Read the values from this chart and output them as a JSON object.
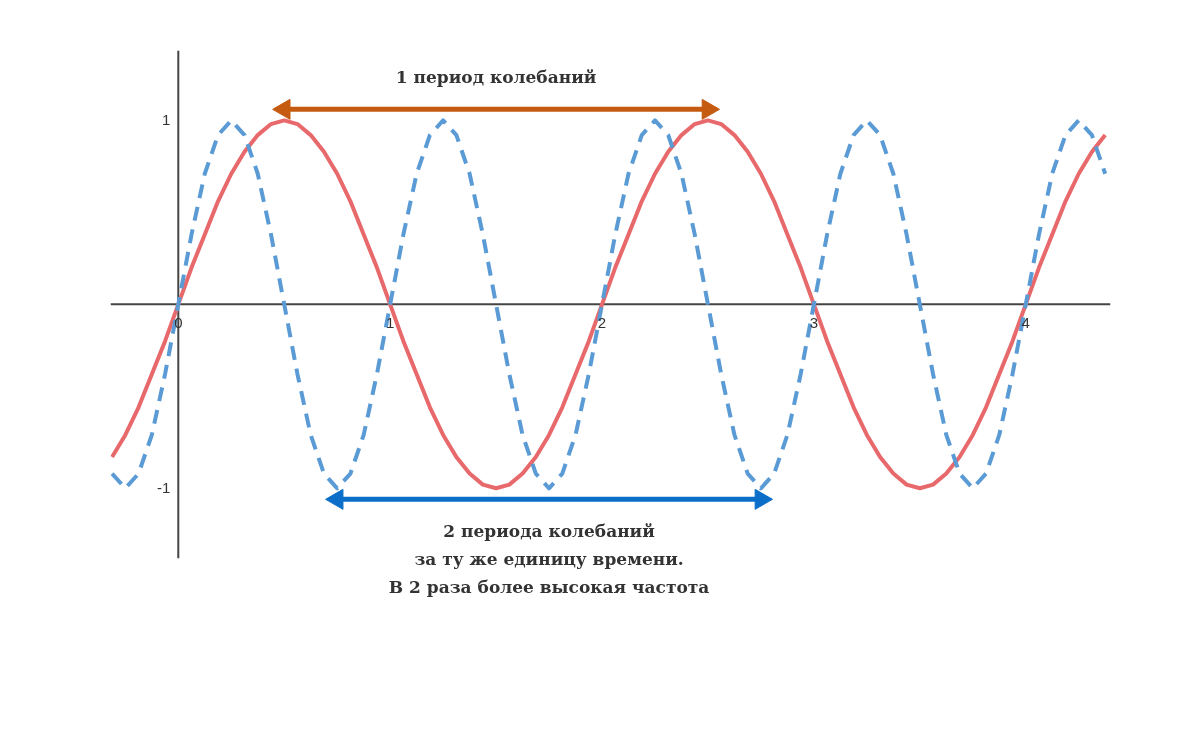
{
  "chart_data": {
    "type": "line",
    "x": [
      -0.3125,
      -0.25,
      -0.1875,
      -0.125,
      -0.0625,
      0,
      0.0625,
      0.125,
      0.1875,
      0.25,
      0.3125,
      0.375,
      0.4375,
      0.5,
      0.5625,
      0.625,
      0.6875,
      0.75,
      0.8125,
      0.875,
      0.9375,
      1,
      1.0625,
      1.125,
      1.1875,
      1.25,
      1.3125,
      1.375,
      1.4375,
      1.5,
      1.5625,
      1.625,
      1.6875,
      1.75,
      1.8125,
      1.875,
      1.9375,
      2,
      2.0625,
      2.125,
      2.1875,
      2.25,
      2.3125,
      2.375,
      2.4375,
      2.5,
      2.5625,
      2.625,
      2.6875,
      2.75,
      2.8125,
      2.875,
      2.9375,
      3,
      3.0625,
      3.125,
      3.1875,
      3.25,
      3.3125,
      3.375,
      3.4375,
      3.5,
      3.5625,
      3.625,
      3.6875,
      3.75,
      3.8125,
      3.875,
      3.9375,
      4,
      4.0625,
      4.125,
      4.1875,
      4.25,
      4.3125,
      4.375
    ],
    "series": [
      {
        "color": "#e8696b",
        "line_style": "solid",
        "values": [
          -0.83,
          -0.71,
          -0.56,
          -0.38,
          -0.2,
          0,
          0.2,
          0.38,
          0.56,
          0.71,
          0.83,
          0.92,
          0.98,
          1,
          0.98,
          0.92,
          0.83,
          0.71,
          0.56,
          0.38,
          0.2,
          0,
          -0.2,
          -0.38,
          -0.56,
          -0.71,
          -0.83,
          -0.92,
          -0.98,
          -1,
          -0.98,
          -0.92,
          -0.83,
          -0.71,
          -0.56,
          -0.38,
          -0.2,
          0,
          0.2,
          0.38,
          0.56,
          0.71,
          0.83,
          0.92,
          0.98,
          1,
          0.98,
          0.92,
          0.83,
          0.71,
          0.56,
          0.38,
          0.2,
          0,
          -0.2,
          -0.38,
          -0.56,
          -0.71,
          -0.83,
          -0.92,
          -0.98,
          -1,
          -0.98,
          -0.92,
          -0.83,
          -0.71,
          -0.56,
          -0.38,
          -0.2,
          0,
          0.2,
          0.38,
          0.56,
          0.71,
          0.83,
          0.92
        ]
      },
      {
        "type": "line",
        "color": "#c55a11",
        "line_style": "solid",
        "marker": "triangle",
        "x": [
          0.5,
          2.5
        ],
        "values": [
          1.06,
          1.06
        ]
      },
      {
        "type": "line",
        "color": "#0b6fc9",
        "line_style": "solid",
        "marker": "triangle",
        "x": [
          0.75,
          2.75
        ],
        "values": [
          -1.06,
          -1.06
        ]
      },
      {
        "color": "#5b9bd5",
        "line_style": "dashed",
        "values": [
          -0.92,
          -1,
          -0.92,
          -0.71,
          -0.38,
          0,
          0.38,
          0.71,
          0.92,
          1,
          0.92,
          0.71,
          0.38,
          0,
          -0.38,
          -0.71,
          -0.92,
          -1,
          -0.92,
          -0.71,
          -0.38,
          0,
          0.38,
          0.71,
          0.92,
          1,
          0.92,
          0.71,
          0.38,
          0,
          -0.38,
          -0.71,
          -0.92,
          -1,
          -0.92,
          -0.71,
          -0.38,
          0,
          0.38,
          0.71,
          0.92,
          1,
          0.92,
          0.71,
          0.38,
          0,
          -0.38,
          -0.71,
          -0.92,
          -1,
          -0.92,
          -0.71,
          -0.38,
          0,
          0.38,
          0.71,
          0.92,
          1,
          0.92,
          0.71,
          0.38,
          0,
          -0.38,
          -0.71,
          -0.92,
          -1,
          -0.92,
          -0.71,
          -0.38,
          0,
          0.38,
          0.71,
          0.92,
          1,
          0.92,
          0.71
        ]
      }
    ],
    "xlim": [
      -0.32,
      4.4
    ],
    "ylim": [
      -1.38,
      1.38
    ],
    "xticks": [
      0,
      1,
      2,
      3,
      4
    ],
    "yticks": [
      -1,
      1
    ],
    "grid": false,
    "marker": "none",
    "annotations": [
      {
        "text": "1 период колебаний",
        "x": 1.5,
        "y": 1.06
      },
      {
        "text": "2 периода колебаний\nза ту же единицу времени.\nВ 2 раза более высокая частота",
        "x": 1.75,
        "y": -1.06
      }
    ]
  }
}
